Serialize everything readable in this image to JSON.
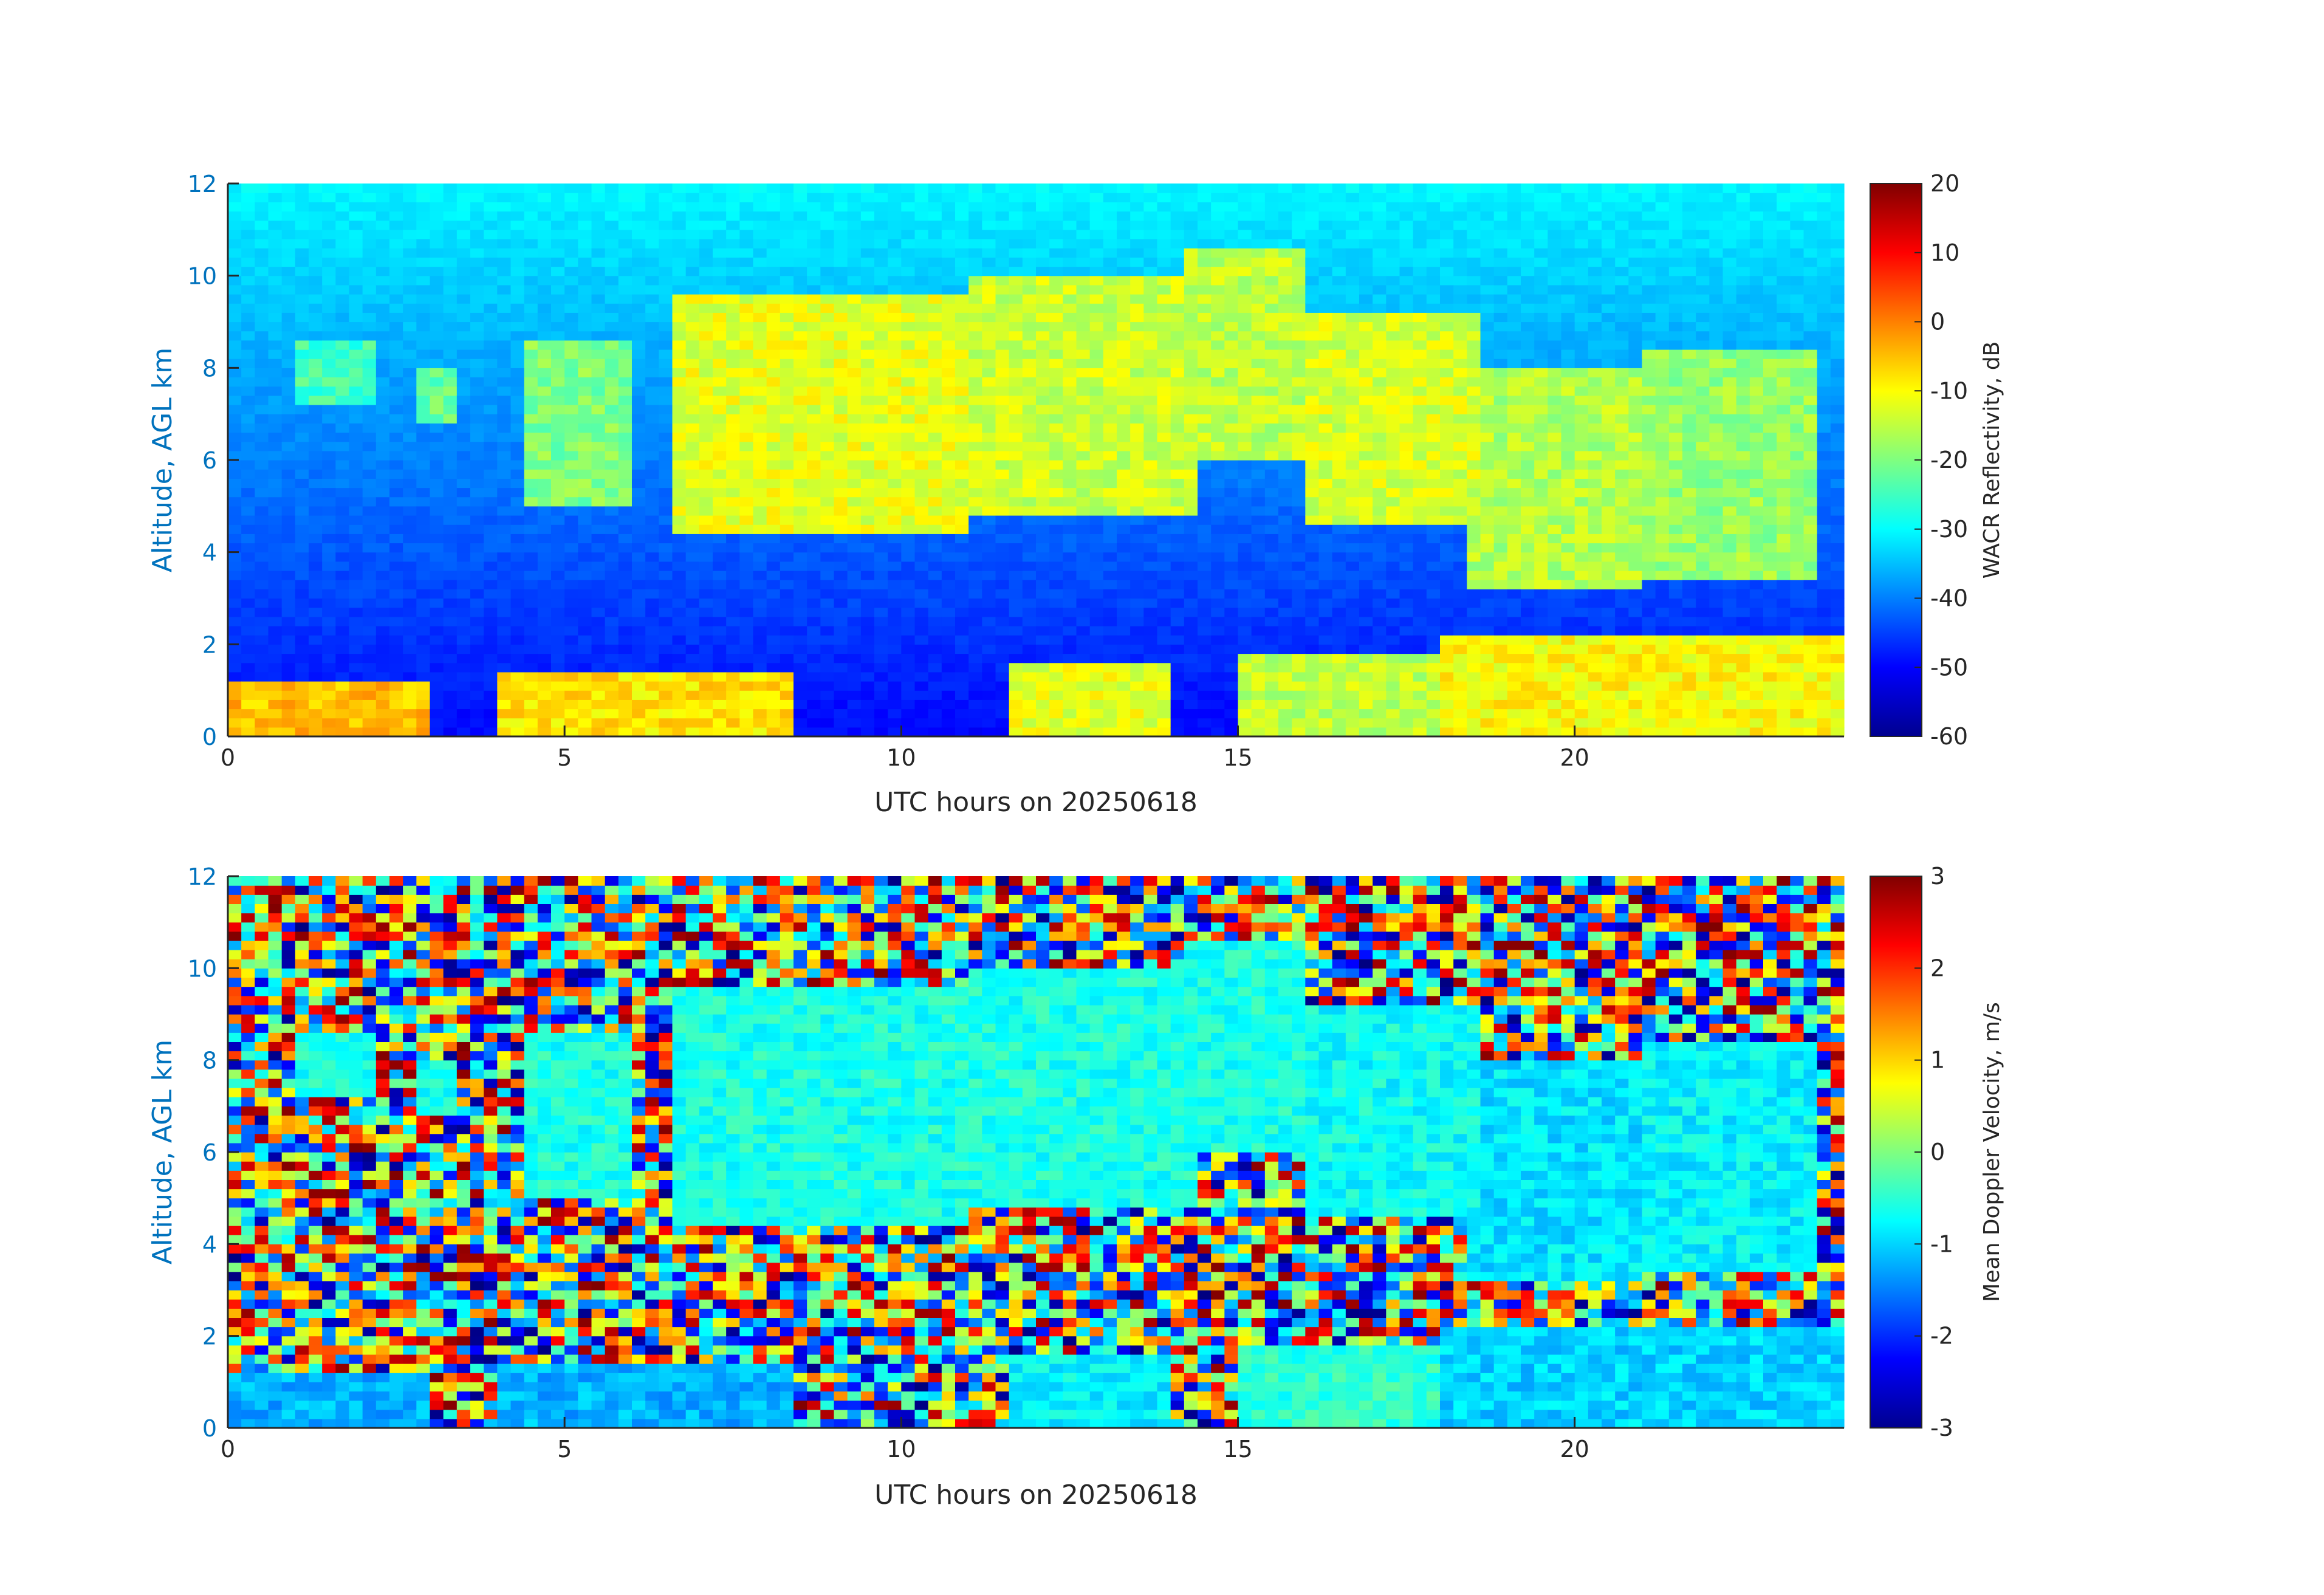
{
  "chart_data": [
    {
      "type": "heatmap",
      "title": "",
      "xlabel": "UTC hours on 20250618",
      "ylabel": "Altitude, AGL km",
      "xlim": [
        0,
        24
      ],
      "ylim": [
        0,
        12
      ],
      "xticks": [
        0,
        5,
        10,
        15,
        20
      ],
      "yticks": [
        0,
        2,
        4,
        6,
        8,
        10,
        12
      ],
      "colorbar": {
        "label": "WACR Reflectivity, dB",
        "range": [
          -60,
          20
        ],
        "ticks": [
          -60,
          -50,
          -40,
          -30,
          -20,
          -10,
          0,
          10,
          20
        ],
        "colormap": "jet"
      },
      "background_value": -40,
      "cloud_layers": [
        {
          "x_start": 1.0,
          "x_end": 2.2,
          "base_km": 7.3,
          "top_km": 8.6,
          "value": -25
        },
        {
          "x_start": 2.8,
          "x_end": 3.4,
          "base_km": 6.9,
          "top_km": 8.0,
          "value": -22
        },
        {
          "x_start": 4.4,
          "x_end": 5.9,
          "base_km": 5.1,
          "top_km": 8.6,
          "value": -20
        },
        {
          "x_start": 6.6,
          "x_end": 11.0,
          "base_km": 4.5,
          "top_km": 9.5,
          "value": -12
        },
        {
          "x_start": 11.0,
          "x_end": 14.3,
          "base_km": 4.9,
          "top_km": 10.0,
          "value": -14
        },
        {
          "x_start": 14.3,
          "x_end": 16.0,
          "base_km": 6.0,
          "top_km": 10.5,
          "value": -15
        },
        {
          "x_start": 16.0,
          "x_end": 18.5,
          "base_km": 4.6,
          "top_km": 9.2,
          "value": -13
        },
        {
          "x_start": 18.5,
          "x_end": 21.0,
          "base_km": 3.3,
          "top_km": 8.0,
          "value": -16
        },
        {
          "x_start": 21.0,
          "x_end": 23.5,
          "base_km": 3.4,
          "top_km": 8.4,
          "value": -18
        }
      ],
      "low_clouds": [
        {
          "x_start": 0.0,
          "x_end": 3.0,
          "top_km": 1.2,
          "value": -5
        },
        {
          "x_start": 4.0,
          "x_end": 8.3,
          "top_km": 1.4,
          "value": -8
        },
        {
          "x_start": 11.7,
          "x_end": 14.0,
          "top_km": 1.6,
          "value": -12
        },
        {
          "x_start": 15.0,
          "x_end": 18.0,
          "top_km": 1.8,
          "value": -15
        },
        {
          "x_start": 18.0,
          "x_end": 24.0,
          "top_km": 2.2,
          "value": -10
        }
      ]
    },
    {
      "type": "heatmap",
      "title": "",
      "xlabel": "UTC hours on 20250618",
      "ylabel": "Altitude, AGL km",
      "xlim": [
        0,
        24
      ],
      "ylim": [
        0,
        12
      ],
      "xticks": [
        0,
        5,
        10,
        15,
        20
      ],
      "yticks": [
        0,
        2,
        4,
        6,
        8,
        10,
        12
      ],
      "colorbar": {
        "label": "Mean Doppler Velocity, m/s",
        "range": [
          -3,
          3
        ],
        "ticks": [
          -3,
          -2,
          -1,
          0,
          1,
          2,
          3
        ],
        "colormap": "jet"
      },
      "background": "noise",
      "cloud_layers": [
        {
          "x_start": 1.0,
          "x_end": 2.2,
          "base_km": 7.3,
          "top_km": 8.6,
          "value": -0.6
        },
        {
          "x_start": 2.8,
          "x_end": 3.4,
          "base_km": 6.9,
          "top_km": 8.0,
          "value": -0.6
        },
        {
          "x_start": 4.4,
          "x_end": 5.9,
          "base_km": 5.1,
          "top_km": 8.6,
          "value": -0.6
        },
        {
          "x_start": 6.6,
          "x_end": 11.0,
          "base_km": 4.5,
          "top_km": 9.5,
          "value": -0.6
        },
        {
          "x_start": 11.0,
          "x_end": 14.3,
          "base_km": 4.9,
          "top_km": 10.0,
          "value": -0.6
        },
        {
          "x_start": 14.3,
          "x_end": 16.0,
          "base_km": 6.0,
          "top_km": 10.5,
          "value": -0.6
        },
        {
          "x_start": 16.0,
          "x_end": 18.5,
          "base_km": 4.6,
          "top_km": 9.2,
          "value": -0.7
        },
        {
          "x_start": 18.5,
          "x_end": 21.0,
          "base_km": 3.3,
          "top_km": 8.0,
          "value": -0.9
        },
        {
          "x_start": 21.0,
          "x_end": 23.5,
          "base_km": 3.4,
          "top_km": 8.4,
          "value": -0.8
        }
      ],
      "low_clouds": [
        {
          "x_start": 0.0,
          "x_end": 3.0,
          "top_km": 1.2,
          "value": -1.2
        },
        {
          "x_start": 4.0,
          "x_end": 8.3,
          "top_km": 1.4,
          "value": -1.2
        },
        {
          "x_start": 11.7,
          "x_end": 14.0,
          "top_km": 1.6,
          "value": -0.8
        },
        {
          "x_start": 15.0,
          "x_end": 18.0,
          "top_km": 1.8,
          "value": -0.5
        },
        {
          "x_start": 18.0,
          "x_end": 24.0,
          "top_km": 2.2,
          "value": -1.0
        }
      ]
    }
  ]
}
